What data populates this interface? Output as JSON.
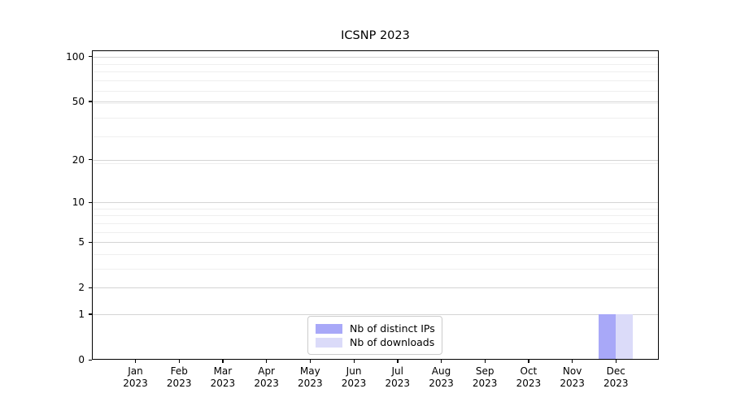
{
  "title": "ICSNP 2023",
  "chart_data": {
    "type": "bar",
    "title": "ICSNP 2023",
    "categories": [
      "Jan 2023",
      "Feb 2023",
      "Mar 2023",
      "Apr 2023",
      "May 2023",
      "Jun 2023",
      "Jul 2023",
      "Aug 2023",
      "Sep 2023",
      "Oct 2023",
      "Nov 2023",
      "Dec 2023"
    ],
    "x_tick_month_labels": [
      "Jan",
      "Feb",
      "Mar",
      "Apr",
      "May",
      "Jun",
      "Jul",
      "Aug",
      "Sep",
      "Oct",
      "Nov",
      "Dec"
    ],
    "x_tick_year_label": "2023",
    "series": [
      {
        "name": "Nb of distinct IPs",
        "color": "#a8a8f8",
        "values": [
          0,
          0,
          0,
          0,
          0,
          0,
          0,
          0,
          0,
          0,
          0,
          1
        ]
      },
      {
        "name": "Nb of downloads",
        "color": "#dbdbf9",
        "values": [
          0,
          0,
          0,
          0,
          0,
          0,
          0,
          0,
          0,
          0,
          0,
          1
        ]
      }
    ],
    "y_axis": {
      "scale": "log1p",
      "ticks": [
        0,
        1,
        2,
        5,
        10,
        20,
        50,
        100
      ],
      "tick_labels": [
        "0",
        "1",
        "2",
        "5",
        "10",
        "20",
        "50",
        "100"
      ],
      "display_max": 110,
      "minor_gridline_values": [
        3,
        4,
        6,
        7,
        8,
        9,
        19,
        29,
        39,
        49,
        59,
        69,
        79,
        89
      ]
    },
    "grid": "on",
    "legend_position": "lower center",
    "colors": {
      "grid_major": "#d4d4d4",
      "grid_minor": "#efefef",
      "spine": "#000000",
      "background": "#ffffff"
    }
  }
}
